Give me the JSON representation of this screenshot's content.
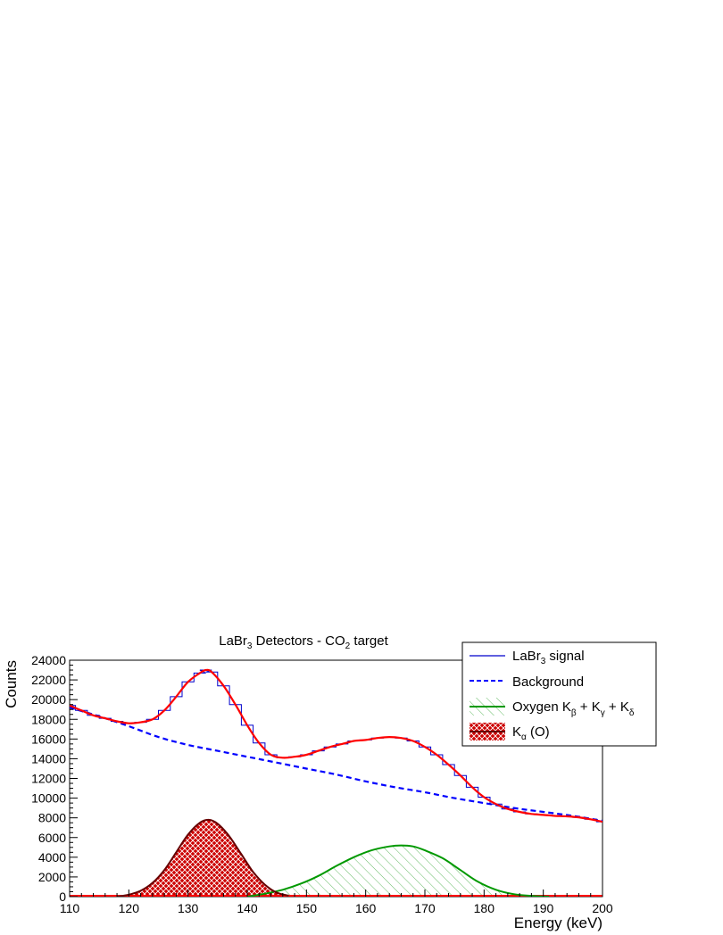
{
  "chart_data": {
    "type": "line",
    "title": "LaBr3 Detectors - CO2 target",
    "title_parts": {
      "a": "LaBr",
      "a_sub": "3",
      "b": " Detectors - CO",
      "b_sub": "2",
      "c": " target"
    },
    "xlabel": "Energy (keV)",
    "ylabel": "Counts",
    "xlim": [
      110,
      200
    ],
    "ylim": [
      0,
      24000
    ],
    "xticks": [
      "110",
      "120",
      "130",
      "140",
      "150",
      "160",
      "170",
      "180",
      "190",
      "200"
    ],
    "yticks": [
      "0",
      "2000",
      "4000",
      "6000",
      "8000",
      "10000",
      "12000",
      "14000",
      "16000",
      "18000",
      "20000",
      "22000",
      "24000"
    ],
    "grid": false,
    "legend_position": "top-right",
    "legend": [
      {
        "key": "signal",
        "label": "LaBr",
        "sub": "3",
        "rest": " signal"
      },
      {
        "key": "background",
        "label": "Background"
      },
      {
        "key": "oxygen",
        "label": "Oxygen K",
        "subs": [
          "β",
          "γ",
          "δ"
        ]
      },
      {
        "key": "kalpha",
        "label": "K",
        "sub": "α",
        "rest": " (O)"
      }
    ],
    "colors": {
      "signal": "#0000cc",
      "fit": "#ff0000",
      "background": "#0000ff",
      "oxygen_line": "#009900",
      "oxygen_fill": "#66bb66",
      "kalpha_line": "#660000",
      "kalpha_fill": "#cc0000"
    },
    "series": [
      {
        "name": "LaBr3 signal",
        "x": [
          110,
          112,
          114,
          116,
          118,
          120,
          122,
          124,
          126,
          128,
          130,
          132,
          133,
          134,
          136,
          138,
          140,
          142,
          144,
          146,
          148,
          150,
          152,
          154,
          156,
          158,
          160,
          162,
          164,
          166,
          168,
          170,
          172,
          174,
          176,
          178,
          180,
          182,
          184,
          186,
          188,
          190,
          192,
          194,
          196,
          198,
          200
        ],
        "y": [
          19400,
          18900,
          18400,
          18100,
          17800,
          17600,
          17700,
          18000,
          18900,
          20300,
          21800,
          22700,
          23000,
          22800,
          21400,
          19500,
          17400,
          15600,
          14400,
          14100,
          14200,
          14400,
          14800,
          15200,
          15500,
          15800,
          15900,
          16100,
          16200,
          16100,
          15800,
          15200,
          14400,
          13400,
          12300,
          11100,
          10100,
          9400,
          8900,
          8600,
          8400,
          8300,
          8200,
          8150,
          8050,
          7850,
          7600
        ]
      },
      {
        "name": "Background",
        "x": [
          110,
          115,
          120,
          125,
          130,
          135,
          140,
          145,
          150,
          155,
          160,
          165,
          170,
          175,
          180,
          185,
          190,
          195,
          200
        ],
        "y": [
          19200,
          18300,
          17300,
          16200,
          15400,
          14800,
          14200,
          13600,
          13000,
          12400,
          11700,
          11100,
          10600,
          10000,
          9500,
          9000,
          8600,
          8200,
          7700
        ]
      },
      {
        "name": "Oxygen K_beta + K_gamma + K_delta",
        "x": [
          140,
          143,
          146,
          149,
          152,
          155,
          158,
          161,
          164,
          166,
          168,
          170,
          173,
          176,
          179,
          182,
          185,
          188,
          191
        ],
        "y": [
          0,
          300,
          700,
          1300,
          2100,
          3100,
          4000,
          4700,
          5100,
          5200,
          5100,
          4700,
          3900,
          2700,
          1500,
          700,
          250,
          80,
          0
        ]
      },
      {
        "name": "K_alpha (O)",
        "x": [
          118,
          120,
          122,
          124,
          126,
          128,
          130,
          132,
          133.5,
          135,
          137,
          139,
          141,
          143,
          145,
          147
        ],
        "y": [
          0,
          200,
          600,
          1400,
          2700,
          4500,
          6300,
          7500,
          7800,
          7400,
          6100,
          4300,
          2500,
          1200,
          400,
          100
        ]
      }
    ]
  }
}
